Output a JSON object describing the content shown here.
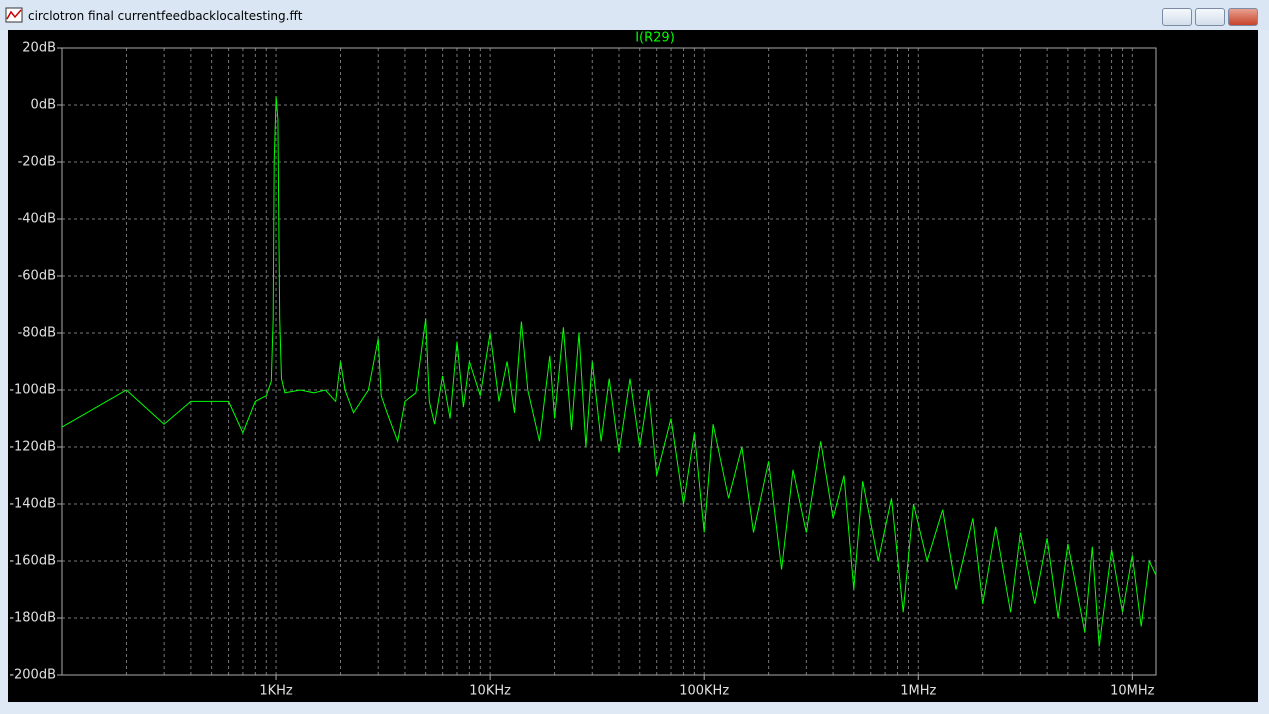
{
  "window": {
    "title": "circlotron final currentfeedbacklocaltesting.fft"
  },
  "chart_data": {
    "type": "line",
    "log_x": true,
    "grid": true,
    "series": [
      {
        "name": "I(R29)",
        "color": "#00ff00",
        "x": [
          100,
          200,
          300,
          400,
          600,
          700,
          800,
          900,
          950,
          970,
          980,
          1000,
          1020,
          1040,
          1060,
          1100,
          1300,
          1500,
          1700,
          1900,
          2000,
          2100,
          2300,
          2700,
          3000,
          3100,
          3300,
          3700,
          4000,
          4500,
          5000,
          5200,
          5500,
          6000,
          6500,
          7000,
          7500,
          8000,
          9000,
          10000,
          11000,
          12000,
          13000,
          14000,
          15000,
          17000,
          19000,
          20000,
          22000,
          24000,
          26000,
          28000,
          30000,
          33000,
          36000,
          40000,
          45000,
          50000,
          55000,
          60000,
          70000,
          80000,
          90000,
          100000,
          110000,
          130000,
          150000,
          170000,
          200000,
          230000,
          260000,
          300000,
          350000,
          400000,
          450000,
          500000,
          550000,
          650000,
          750000,
          850000,
          950000,
          1100000,
          1300000,
          1500000,
          1800000,
          2000000,
          2300000,
          2700000,
          3000000,
          3500000,
          4000000,
          4500000,
          5000000,
          6000000,
          6500000,
          7000000,
          8000000,
          9000000,
          10000000,
          11000000,
          12000000,
          12900000
        ],
        "values": [
          -113,
          -100,
          -112,
          -104,
          -104,
          -115,
          -104,
          -102,
          -97,
          -75,
          -20,
          3,
          -5,
          -75,
          -96,
          -101,
          -100,
          -101,
          -100,
          -104,
          -90,
          -100,
          -108,
          -100,
          -82,
          -102,
          -108,
          -118,
          -104,
          -101,
          -75,
          -104,
          -112,
          -95,
          -110,
          -83,
          -106,
          -90,
          -102,
          -80,
          -104,
          -90,
          -108,
          -76,
          -100,
          -118,
          -88,
          -110,
          -78,
          -114,
          -80,
          -120,
          -90,
          -118,
          -96,
          -122,
          -96,
          -120,
          -100,
          -130,
          -110,
          -140,
          -115,
          -150,
          -112,
          -138,
          -120,
          -150,
          -125,
          -163,
          -128,
          -150,
          -118,
          -145,
          -130,
          -170,
          -132,
          -160,
          -138,
          -178,
          -140,
          -160,
          -142,
          -170,
          -145,
          -175,
          -148,
          -178,
          -150,
          -175,
          -152,
          -180,
          -154,
          -185,
          -155,
          -190,
          -156,
          -178,
          -158,
          -183,
          -160,
          -165
        ]
      }
    ],
    "xlim": [
      100,
      12900000
    ],
    "xticks": [
      {
        "value": 1000,
        "label": "1KHz"
      },
      {
        "value": 10000,
        "label": "10KHz"
      },
      {
        "value": 100000,
        "label": "100KHz"
      },
      {
        "value": 1000000,
        "label": "1MHz"
      },
      {
        "value": 10000000,
        "label": "10MHz"
      }
    ],
    "xminorticks": [
      200,
      300,
      400,
      500,
      600,
      700,
      800,
      900,
      2000,
      3000,
      4000,
      5000,
      6000,
      7000,
      8000,
      9000,
      20000,
      30000,
      40000,
      50000,
      60000,
      70000,
      80000,
      90000,
      200000,
      300000,
      400000,
      500000,
      600000,
      700000,
      800000,
      900000,
      2000000,
      3000000,
      4000000,
      5000000,
      6000000,
      7000000,
      8000000,
      9000000
    ],
    "ylim": [
      -200,
      20
    ],
    "yticks": [
      {
        "value": 20,
        "label": "20dB"
      },
      {
        "value": 0,
        "label": "0dB"
      },
      {
        "value": -20,
        "label": "-20dB"
      },
      {
        "value": -40,
        "label": "-40dB"
      },
      {
        "value": -60,
        "label": "-60dB"
      },
      {
        "value": -80,
        "label": "-80dB"
      },
      {
        "value": -100,
        "label": "-100dB"
      },
      {
        "value": -120,
        "label": "-120dB"
      },
      {
        "value": -140,
        "label": "-140dB"
      },
      {
        "value": -160,
        "label": "-160dB"
      },
      {
        "value": -180,
        "label": "-180dB"
      },
      {
        "value": -200,
        "label": "-200dB"
      }
    ]
  }
}
